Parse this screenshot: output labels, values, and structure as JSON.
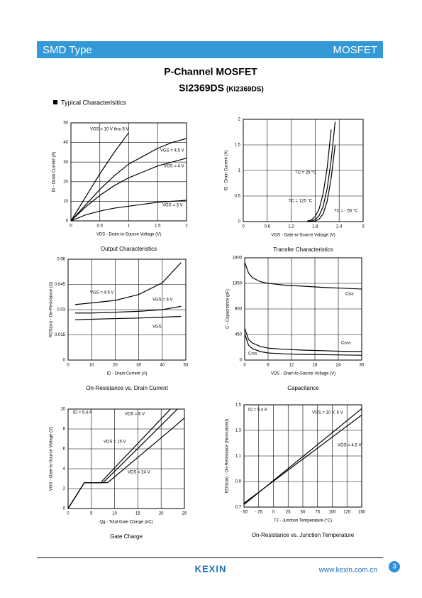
{
  "header": {
    "left": "SMD Type",
    "right": "MOSFET"
  },
  "title": "P-Channel MOSFET",
  "part": "SI2369DS",
  "alt_part": "(KI2369DS)",
  "section": "Typical  Characterisitics",
  "chart_data": [
    {
      "type": "line",
      "title": "Output Characteristics",
      "x_label": "VDS - Drain-to-Source Voltage (V)",
      "y_label": "ID - Drain Current (A)",
      "x": [
        0,
        0.25,
        0.5,
        0.75,
        1,
        1.25,
        1.5,
        1.75,
        2
      ],
      "series": [
        {
          "name": "VGS = 10 V thru 5 V",
          "color": "#000000",
          "values": [
            0,
            12,
            24,
            35,
            45,
            null,
            null,
            null,
            null
          ]
        },
        {
          "name": "VGS = 4.5 V",
          "color": "#000000",
          "values": [
            0,
            8,
            16,
            23,
            29,
            33,
            37,
            40,
            42
          ]
        },
        {
          "name": "VGS = 4 V",
          "color": "#000000",
          "values": [
            0,
            7,
            13,
            18,
            22,
            25,
            28,
            30,
            32
          ]
        },
        {
          "name": "VGS = 3 V",
          "color": "#000000",
          "values": [
            0,
            3,
            5,
            6.5,
            7.5,
            8.5,
            9.5,
            10,
            10.5
          ]
        }
      ],
      "xlim": [
        0,
        2
      ],
      "xticks": [
        0,
        0.5,
        1,
        1.5,
        2
      ],
      "ylim": [
        0,
        50
      ],
      "yticks": [
        0,
        10,
        20,
        30,
        40,
        50
      ],
      "grid": true
    },
    {
      "type": "line",
      "title": "Transfer Characteristics",
      "x_label": "VGS - Gate-to-Source Voltage (V)",
      "y_label": "ID - Drain Current (A)",
      "x": [
        1.6,
        1.7,
        1.8,
        1.9,
        2.0,
        2.1,
        2.2,
        2.3,
        2.4
      ],
      "series": [
        {
          "name": "TC = 25 °C",
          "color": "#000000",
          "values": [
            0,
            0.01,
            0.04,
            0.12,
            0.3,
            0.65,
            1.2,
            1.95,
            null
          ]
        },
        {
          "name": "TC = 125 °C",
          "color": "#000000",
          "values": [
            0.01,
            0.03,
            0.1,
            0.25,
            0.55,
            1.05,
            1.8,
            null,
            null
          ]
        },
        {
          "name": "TC = - 55 °C",
          "color": "#000000",
          "values": [
            0,
            0,
            0.01,
            0.05,
            0.15,
            0.4,
            0.85,
            1.5,
            null
          ]
        }
      ],
      "xlim": [
        0,
        3
      ],
      "xticks": [
        0,
        0.6,
        1.2,
        1.8,
        2.4,
        3
      ],
      "ylim": [
        0,
        2
      ],
      "yticks": [
        0,
        0.5,
        1,
        1.5,
        2
      ],
      "grid": true
    },
    {
      "type": "line",
      "title": "On-Resistance vs. Drain Current",
      "x_label": "ID - Drain Current (A)",
      "y_label": "RDS(on) - On-Resistance (Ω)",
      "x": [
        3,
        10,
        20,
        30,
        40,
        48
      ],
      "series": [
        {
          "name": "VGS = 4.5 V",
          "color": "#000000",
          "values": [
            0.033,
            0.034,
            0.0355,
            0.039,
            0.046,
            0.058
          ]
        },
        {
          "name": "VGS = 6 V",
          "color": "#000000",
          "values": [
            0.028,
            0.028,
            0.0285,
            0.029,
            0.03,
            0.032
          ]
        },
        {
          "name": "VGS",
          "color": "#000000",
          "values": [
            0.024,
            0.0243,
            0.0247,
            0.025,
            0.0255,
            0.026
          ]
        }
      ],
      "xlim": [
        0,
        50
      ],
      "xticks": [
        0,
        10,
        20,
        30,
        40,
        50
      ],
      "ylim": [
        0,
        0.06
      ],
      "yticks": [
        0,
        0.015,
        0.03,
        0.045,
        0.06
      ],
      "grid": true
    },
    {
      "type": "line",
      "title": "Capacitance",
      "x_label": "VDS - Drain-to-Source Voltage (V)",
      "y_label": "C - Capacitance (pF)",
      "x": [
        0,
        1,
        2,
        4,
        6,
        10,
        15,
        20,
        25,
        30
      ],
      "series": [
        {
          "name": "Ciss",
          "color": "#000000",
          "values": [
            1720,
            1530,
            1450,
            1380,
            1350,
            1320,
            1300,
            1280,
            1265,
            1250
          ]
        },
        {
          "name": "Coss",
          "color": "#000000",
          "values": [
            560,
            360,
            300,
            240,
            210,
            190,
            175,
            165,
            155,
            150
          ]
        },
        {
          "name": "Crss",
          "color": "#000000",
          "values": [
            460,
            260,
            200,
            150,
            125,
            110,
            100,
            95,
            90,
            85
          ]
        }
      ],
      "xlim": [
        0,
        30
      ],
      "xticks": [
        0,
        6,
        12,
        18,
        24,
        30
      ],
      "ylim": [
        0,
        1800
      ],
      "yticks": [
        0,
        450,
        900,
        1350,
        1800
      ],
      "grid": true
    },
    {
      "type": "line",
      "title": "Gate Charge",
      "x_label": "Qg - Total Gate Charge (nC)",
      "y_label": "VGS - Gate-to-Source Voltage (V)",
      "annotation": "ID = 5.4 A",
      "x": [
        0,
        3.5,
        7,
        7.5,
        8.5,
        15,
        22,
        23.5,
        25
      ],
      "series": [
        {
          "name": "VDS = 8 V",
          "color": "#000000",
          "values": [
            0,
            2.6,
            2.6,
            2.85,
            3.35,
            6.55,
            10,
            null,
            null
          ]
        },
        {
          "name": "VDS = 15 V",
          "color": "#000000",
          "values": [
            0,
            2.6,
            2.6,
            2.6,
            3.05,
            6.05,
            9.3,
            10,
            null
          ]
        },
        {
          "name": "VDS = 24 V",
          "color": "#000000",
          "values": [
            0,
            2.6,
            2.6,
            2.6,
            2.6,
            5.15,
            7.9,
            8.5,
            9.1
          ]
        }
      ],
      "xlim": [
        0,
        25
      ],
      "xticks": [
        0,
        5,
        10,
        15,
        20,
        25
      ],
      "ylim": [
        0,
        10
      ],
      "yticks": [
        0,
        2,
        4,
        6,
        8,
        10
      ],
      "grid": true
    },
    {
      "type": "line",
      "title": "On-Resistance vs. Junction Temperature",
      "x_label": "TJ - Junction Temperature (°C)",
      "y_label": "RDS(on) - On-Resistance (Normalized)",
      "annotation": "ID = 5.4 A",
      "x": [
        -50,
        150
      ],
      "series": [
        {
          "name": "VGS = 10 V, 6 V",
          "color": "#000000",
          "values": [
            0.72,
            1.47
          ]
        },
        {
          "name": "VGS = 4.5 V",
          "color": "#000000",
          "values": [
            0.73,
            1.42
          ]
        }
      ],
      "xlim": [
        -50,
        150
      ],
      "xticks": [
        {
          "value": -50,
          "label": "- 50"
        },
        {
          "value": -25,
          "label": "- 25"
        },
        0,
        25,
        50,
        75,
        100,
        125,
        150
      ],
      "ylim": [
        0.7,
        1.5
      ],
      "yticks": [
        0.7,
        0.9,
        1.1,
        1.3,
        1.5
      ],
      "grid": true
    }
  ],
  "footer": {
    "logo": "KEXIN",
    "url": "www.kexin.com.cn",
    "page": "3"
  }
}
